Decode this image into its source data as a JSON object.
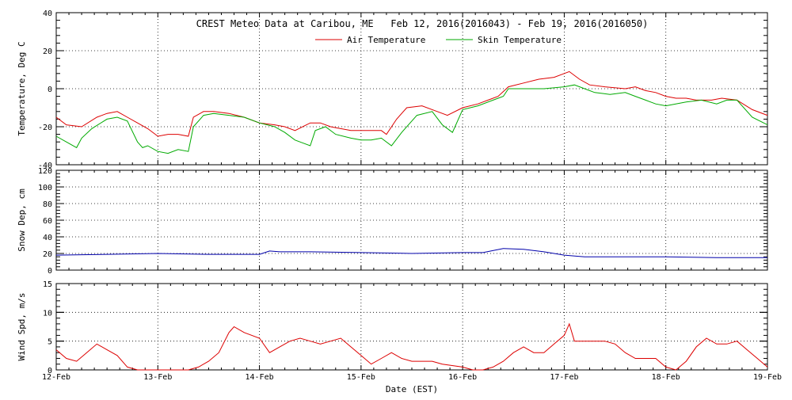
{
  "chart_data": {
    "type": "line",
    "title": "CREST Meteo Data at Caribou, ME   Feb 12, 2016(2016043) - Feb 19, 2016(2016050)",
    "xlabel": "Date (EST)",
    "x_ticks": [
      "12-Feb",
      "13-Feb",
      "14-Feb",
      "15-Feb",
      "16-Feb",
      "17-Feb",
      "18-Feb",
      "19-Feb"
    ],
    "xlim_days": [
      12,
      19
    ],
    "grid": true,
    "panels": [
      {
        "ylabel": "Temperature, Deg C",
        "ylim": [
          -40,
          40
        ],
        "yticks": [
          -40,
          -20,
          0,
          20,
          40
        ],
        "legend": "top-center",
        "series": [
          {
            "name": "Air Temperature",
            "color": "#dd0000",
            "x": [
              12.0,
              12.1,
              12.25,
              12.4,
              12.5,
              12.6,
              12.7,
              12.8,
              12.9,
              13.0,
              13.1,
              13.2,
              13.3,
              13.35,
              13.45,
              13.55,
              13.7,
              13.85,
              14.0,
              14.15,
              14.25,
              14.35,
              14.5,
              14.6,
              14.7,
              14.8,
              14.9,
              15.0,
              15.1,
              15.2,
              15.25,
              15.35,
              15.45,
              15.6,
              15.75,
              15.85,
              16.0,
              16.15,
              16.25,
              16.35,
              16.45,
              16.6,
              16.75,
              16.9,
              17.0,
              17.05,
              17.15,
              17.25,
              17.4,
              17.6,
              17.7,
              17.8,
              17.9,
              18.0,
              18.1,
              18.2,
              18.3,
              18.45,
              18.55,
              18.7,
              18.85,
              19.0
            ],
            "y": [
              -15,
              -19,
              -20,
              -15,
              -13,
              -12,
              -15,
              -18,
              -21,
              -25,
              -24,
              -24,
              -25,
              -15,
              -12,
              -12,
              -13,
              -15,
              -18,
              -19,
              -20,
              -22,
              -18,
              -18,
              -20,
              -21,
              -22,
              -22,
              -22,
              -22,
              -24,
              -16,
              -10,
              -9,
              -12,
              -14,
              -10,
              -8,
              -6,
              -4,
              1,
              3,
              5,
              6,
              8,
              9,
              5,
              2,
              1,
              0,
              1,
              -1,
              -2,
              -4,
              -5,
              -5,
              -6,
              -6,
              -5,
              -6,
              -11,
              -14
            ]
          },
          {
            "name": "Skin Temperature",
            "color": "#00aa00",
            "x": [
              12.0,
              12.1,
              12.2,
              12.25,
              12.35,
              12.5,
              12.6,
              12.7,
              12.8,
              12.85,
              12.9,
              13.0,
              13.1,
              13.2,
              13.3,
              13.35,
              13.45,
              13.55,
              13.7,
              13.85,
              14.0,
              14.15,
              14.25,
              14.35,
              14.5,
              14.55,
              14.65,
              14.75,
              14.9,
              15.0,
              15.1,
              15.2,
              15.3,
              15.4,
              15.55,
              15.7,
              15.8,
              15.9,
              16.0,
              16.15,
              16.3,
              16.4,
              16.45,
              16.6,
              16.8,
              17.0,
              17.1,
              17.2,
              17.3,
              17.45,
              17.6,
              17.7,
              17.8,
              17.9,
              18.0,
              18.2,
              18.35,
              18.5,
              18.6,
              18.7,
              18.85,
              19.0
            ],
            "y": [
              -25,
              -28,
              -31,
              -26,
              -21,
              -16,
              -15,
              -17,
              -28,
              -31,
              -30,
              -33,
              -34,
              -32,
              -33,
              -20,
              -14,
              -13,
              -14,
              -15,
              -18,
              -20,
              -23,
              -27,
              -30,
              -22,
              -20,
              -24,
              -26,
              -27,
              -27,
              -26,
              -30,
              -23,
              -14,
              -12,
              -19,
              -23,
              -11,
              -9,
              -6,
              -4,
              0,
              0,
              0,
              1,
              2,
              0,
              -2,
              -3,
              -2,
              -4,
              -6,
              -8,
              -9,
              -7,
              -6,
              -8,
              -6,
              -6,
              -15,
              -19
            ]
          }
        ]
      },
      {
        "ylabel": "Snow Dep, cm",
        "ylim": [
          0,
          120
        ],
        "yticks": [
          0,
          20,
          40,
          60,
          80,
          100,
          120
        ],
        "series": [
          {
            "color": "#0000aa",
            "x": [
              12.0,
              12.5,
              13.0,
              13.5,
              14.0,
              14.1,
              14.2,
              14.5,
              15.0,
              15.5,
              16.0,
              16.2,
              16.4,
              16.6,
              16.8,
              17.0,
              17.2,
              17.5,
              18.0,
              18.5,
              19.0
            ],
            "y": [
              18,
              19,
              20,
              19,
              19,
              23,
              22,
              22,
              21,
              20,
              21,
              21,
              26,
              25,
              22,
              18,
              16,
              16,
              16,
              15,
              15
            ]
          }
        ]
      },
      {
        "ylabel": "Wind Spd, m/s",
        "ylim": [
          0,
          15
        ],
        "yticks": [
          0,
          5,
          10,
          15
        ],
        "series": [
          {
            "color": "#dd0000",
            "x": [
              12.0,
              12.1,
              12.2,
              12.3,
              12.4,
              12.5,
              12.6,
              12.7,
              12.8,
              12.9,
              13.0,
              13.1,
              13.2,
              13.3,
              13.4,
              13.5,
              13.6,
              13.7,
              13.75,
              13.85,
              14.0,
              14.1,
              14.2,
              14.3,
              14.4,
              14.5,
              14.6,
              14.7,
              14.8,
              14.9,
              15.0,
              15.1,
              15.2,
              15.3,
              15.4,
              15.5,
              15.6,
              15.7,
              15.8,
              16.0,
              16.1,
              16.2,
              16.3,
              16.4,
              16.5,
              16.6,
              16.7,
              16.8,
              16.9,
              17.0,
              17.05,
              17.1,
              17.2,
              17.3,
              17.4,
              17.5,
              17.6,
              17.7,
              17.8,
              17.9,
              18.0,
              18.1,
              18.2,
              18.3,
              18.4,
              18.5,
              18.6,
              18.7,
              18.8,
              18.9,
              19.0
            ],
            "y": [
              3.5,
              2,
              1.5,
              3,
              4.5,
              3.5,
              2.5,
              0.5,
              0,
              0,
              0,
              0,
              0,
              0,
              0.5,
              1.5,
              3,
              6.5,
              7.5,
              6.5,
              5.5,
              3,
              4,
              5,
              5.5,
              5,
              4.5,
              5,
              5.5,
              4,
              2.5,
              1,
              2,
              3,
              2,
              1.5,
              1.5,
              1.5,
              1,
              0.5,
              0,
              0,
              0.5,
              1.5,
              3,
              4,
              3,
              3,
              4.5,
              6,
              8,
              5,
              5,
              5,
              5,
              4.5,
              3,
              2,
              2,
              2,
              0.5,
              0,
              1.5,
              4,
              5.5,
              4.5,
              4.5,
              5,
              3.5,
              2,
              0.5
            ]
          }
        ]
      }
    ]
  }
}
